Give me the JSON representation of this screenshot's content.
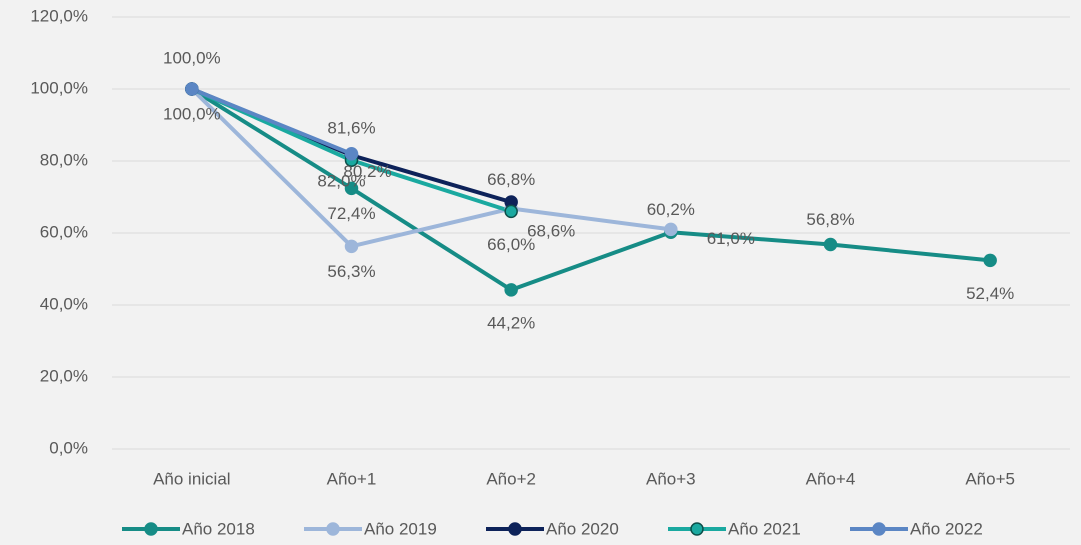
{
  "chart_data": {
    "type": "line",
    "categories": [
      "Año inicial",
      "Año+1",
      "Año+2",
      "Año+3",
      "Año+4",
      "Año+5"
    ],
    "series": [
      {
        "name": "Año 2018",
        "color": "#168c86",
        "values": [
          100,
          72.4,
          44.2,
          60.2,
          56.8,
          52.4
        ],
        "value_labels": [
          "100,0%",
          "72,4%",
          "44,2%",
          "60,2%",
          "56,8%",
          "52,4%"
        ]
      },
      {
        "name": "Año 2019",
        "color": "#9db6da",
        "values": [
          100,
          56.3,
          66.8,
          61.0,
          null,
          null
        ],
        "value_labels": [
          "100,0%",
          "56,3%",
          "66,8%",
          "61,0%",
          null,
          null
        ]
      },
      {
        "name": "Año 2020",
        "color": "#0d2259",
        "values": [
          100,
          81.6,
          68.6,
          null,
          null,
          null
        ],
        "value_labels": [
          null,
          "81,6%",
          "68,6%",
          null,
          null,
          null
        ]
      },
      {
        "name": "Año 2021",
        "color": "#1aa9a0",
        "values": [
          100,
          80.2,
          66.0,
          null,
          null,
          null
        ],
        "value_labels": [
          null,
          "80,2%",
          "66,0%",
          null,
          null,
          null
        ]
      },
      {
        "name": "Año 2022",
        "color": "#5b86c4",
        "values": [
          100,
          82.0,
          null,
          null,
          null,
          null
        ],
        "value_labels": [
          null,
          "82,0%",
          null,
          null,
          null,
          null
        ]
      }
    ],
    "ylim": [
      0,
      120
    ],
    "yticks": [
      {
        "value": 0,
        "label": "0,0%"
      },
      {
        "value": 20,
        "label": "20,0%"
      },
      {
        "value": 40,
        "label": "40,0%"
      },
      {
        "value": 60,
        "label": "60,0%"
      },
      {
        "value": 80,
        "label": "80,0%"
      },
      {
        "value": 100,
        "label": "100,0%"
      },
      {
        "value": 120,
        "label": "120,0%"
      }
    ],
    "grid": true,
    "legend": "bottom"
  }
}
